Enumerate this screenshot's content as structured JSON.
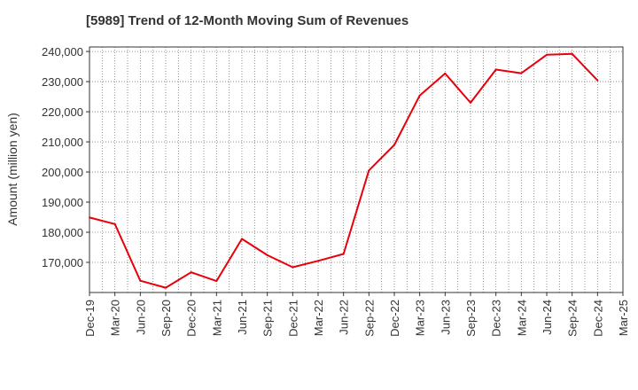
{
  "chart_data": {
    "type": "line",
    "title": "[5989]  Trend of 12-Month Moving Sum of Revenues",
    "xlabel": "",
    "ylabel": "Amount (million yen)",
    "categories": [
      "Dec-19",
      "Mar-20",
      "Jun-20",
      "Sep-20",
      "Dec-20",
      "Mar-21",
      "Jun-21",
      "Sep-21",
      "Dec-21",
      "Mar-22",
      "Jun-22",
      "Sep-22",
      "Dec-22",
      "Mar-23",
      "Jun-23",
      "Sep-23",
      "Dec-23",
      "Mar-24",
      "Jun-24",
      "Sep-24",
      "Dec-24",
      "Mar-25"
    ],
    "series": [
      {
        "name": "",
        "color": "#e8000b",
        "values": [
          184900,
          182700,
          163900,
          161600,
          166700,
          163800,
          177800,
          172400,
          168400,
          170500,
          172800,
          200500,
          209000,
          225400,
          232700,
          223000,
          234000,
          232800,
          238900,
          239200,
          230400,
          null
        ]
      }
    ],
    "ylim": [
      160000,
      241500
    ],
    "yticks": [
      170000,
      180000,
      190000,
      200000,
      210000,
      220000,
      230000,
      240000
    ],
    "ytick_labels": [
      "170,000",
      "180,000",
      "190,000",
      "200,000",
      "210,000",
      "220,000",
      "230,000",
      "240,000"
    ],
    "grid": true,
    "legend": "none"
  }
}
